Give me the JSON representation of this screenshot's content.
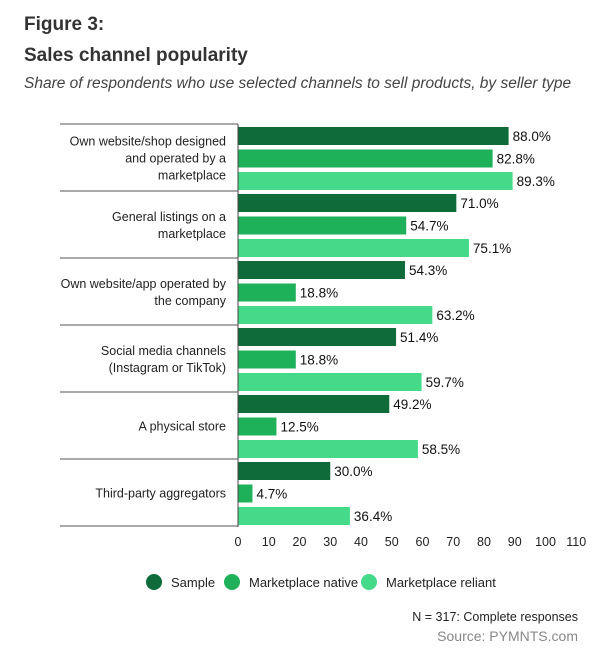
{
  "figure_label": "Figure 3:",
  "title": "Sales channel popularity",
  "subtitle": "Share of respondents who use selected channels to sell products, by seller type",
  "note": "N = 317: Complete responses",
  "source": "Source: PYMNTS.com",
  "colors": {
    "sample": "#0f6b3a",
    "marketplace_native": "#1fb15a",
    "marketplace_reliant": "#45d98a"
  },
  "chart_data": {
    "type": "bar",
    "orientation": "horizontal",
    "categories": [
      [
        "Own website/shop designed",
        "and operated by a",
        "marketplace"
      ],
      [
        "General listings on a",
        "marketplace"
      ],
      [
        "Own website/app operated by",
        "the company"
      ],
      [
        "Social media channels",
        "(Instagram or TikTok)"
      ],
      [
        "A physical store"
      ],
      [
        "Third-party aggregators"
      ]
    ],
    "series": [
      {
        "name": "Sample",
        "color": "#0f6b3a",
        "values": [
          88.0,
          71.0,
          54.3,
          51.4,
          49.2,
          30.0
        ]
      },
      {
        "name": "Marketplace native",
        "color": "#1fb15a",
        "values": [
          82.8,
          54.7,
          18.8,
          18.8,
          12.5,
          4.7
        ]
      },
      {
        "name": "Marketplace reliant",
        "color": "#45d98a",
        "values": [
          89.3,
          75.1,
          63.2,
          59.7,
          58.5,
          36.4
        ]
      }
    ],
    "value_suffix": "%",
    "xlim": [
      0,
      110
    ],
    "xticks": [
      0,
      10,
      20,
      30,
      40,
      50,
      60,
      70,
      80,
      90,
      100,
      110
    ],
    "grid": false,
    "legend_position": "bottom"
  }
}
